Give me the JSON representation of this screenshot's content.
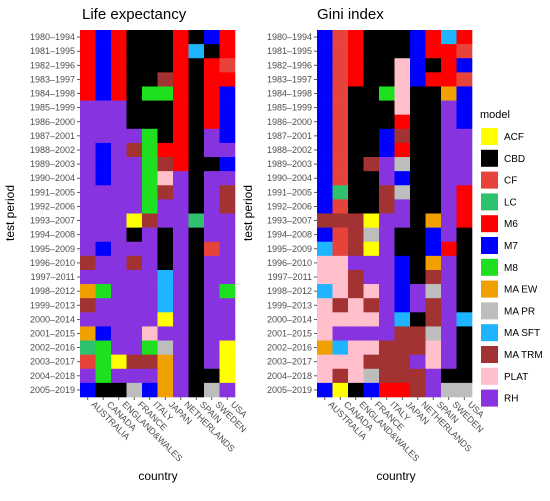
{
  "chart_data": {
    "type": "heatmap",
    "legend": {
      "title": "model",
      "position": "right",
      "items": [
        {
          "label": "ACF",
          "color": "#ffff00"
        },
        {
          "label": "CBD",
          "color": "#000000"
        },
        {
          "label": "CF",
          "color": "#e8433b"
        },
        {
          "label": "LC",
          "color": "#2ec26e"
        },
        {
          "label": "M6",
          "color": "#ff0000"
        },
        {
          "label": "M7",
          "color": "#0000ff"
        },
        {
          "label": "M8",
          "color": "#1ee01e"
        },
        {
          "label": "MA EW",
          "color": "#f0a000"
        },
        {
          "label": "MA PR",
          "color": "#bdbdbd"
        },
        {
          "label": "MA SFT",
          "color": "#1eb4ff"
        },
        {
          "label": "MA TRM",
          "color": "#a33232"
        },
        {
          "label": "PLAT",
          "color": "#ffc0cb"
        },
        {
          "label": "RH",
          "color": "#8833e0"
        }
      ]
    },
    "panels": [
      {
        "title": "Life expectancy",
        "xlabel": "country",
        "ylabel": "test period",
        "countries": [
          "AUSTRALIA",
          "CANADA",
          "ENGLAND&WALES",
          "FRANCE",
          "ITALY",
          "JAPAN",
          "NETHERLANDS",
          "SPAIN",
          "SWEDEN",
          "USA"
        ],
        "periods": [
          "1980–1994",
          "1981–1995",
          "1982–1996",
          "1983–1997",
          "1984–1998",
          "1985–1999",
          "1986–2000",
          "1987–2001",
          "1988–2002",
          "1989–2003",
          "1990–2004",
          "1991–2005",
          "1992–2006",
          "1993–2007",
          "1994–2008",
          "1995–2009",
          "1996–2010",
          "1997–2011",
          "1998–2012",
          "1999–2013",
          "2000–2014",
          "2001–2015",
          "2002–2016",
          "2003–2017",
          "2004–2018",
          "2005–2019"
        ],
        "cells": [
          [
            "M6",
            "M7",
            "M6",
            "CBD",
            "CBD",
            "CBD",
            "M6",
            "CBD",
            "M7",
            "M6"
          ],
          [
            "M6",
            "M7",
            "M6",
            "CBD",
            "CBD",
            "CBD",
            "M6",
            "MA SFT",
            "CBD",
            "M6"
          ],
          [
            "M6",
            "M7",
            "M6",
            "CBD",
            "CBD",
            "CBD",
            "M6",
            "CBD",
            "M6",
            "CF"
          ],
          [
            "M6",
            "M7",
            "M6",
            "CBD",
            "CBD",
            "MA TRM",
            "M6",
            "CBD",
            "M6",
            "M6"
          ],
          [
            "M6",
            "M7",
            "M6",
            "CBD",
            "M8",
            "M8",
            "M6",
            "CBD",
            "M6",
            "M7"
          ],
          [
            "RH",
            "RH",
            "RH",
            "CBD",
            "CBD",
            "CBD",
            "M6",
            "CBD",
            "M6",
            "M7"
          ],
          [
            "RH",
            "RH",
            "RH",
            "CBD",
            "CBD",
            "CBD",
            "M6",
            "CBD",
            "M6",
            "M7"
          ],
          [
            "RH",
            "RH",
            "RH",
            "RH",
            "M8",
            "CBD",
            "M6",
            "CBD",
            "RH",
            "M7"
          ],
          [
            "RH",
            "M7",
            "RH",
            "MA TRM",
            "M8",
            "M6",
            "M6",
            "CBD",
            "RH",
            "RH"
          ],
          [
            "RH",
            "M7",
            "RH",
            "RH",
            "M8",
            "MA TRM",
            "M6",
            "CBD",
            "CBD",
            "M7"
          ],
          [
            "RH",
            "M7",
            "RH",
            "RH",
            "M8",
            "PLAT",
            "RH",
            "CBD",
            "RH",
            "RH"
          ],
          [
            "RH",
            "RH",
            "RH",
            "RH",
            "M8",
            "MA TRM",
            "RH",
            "CBD",
            "RH",
            "MA TRM"
          ],
          [
            "RH",
            "RH",
            "RH",
            "RH",
            "M8",
            "RH",
            "RH",
            "CBD",
            "RH",
            "MA TRM"
          ],
          [
            "RH",
            "RH",
            "RH",
            "ACF",
            "MA TRM",
            "RH",
            "RH",
            "LC",
            "RH",
            "RH"
          ],
          [
            "RH",
            "RH",
            "RH",
            "CBD",
            "RH",
            "CBD",
            "RH",
            "CBD",
            "RH",
            "RH"
          ],
          [
            "RH",
            "M7",
            "RH",
            "RH",
            "RH",
            "CBD",
            "RH",
            "CBD",
            "CF",
            "RH"
          ],
          [
            "MA TRM",
            "RH",
            "RH",
            "MA TRM",
            "RH",
            "CBD",
            "RH",
            "CBD",
            "RH",
            "RH"
          ],
          [
            "RH",
            "RH",
            "RH",
            "RH",
            "RH",
            "MA SFT",
            "RH",
            "CBD",
            "RH",
            "RH"
          ],
          [
            "MA EW",
            "M8",
            "RH",
            "RH",
            "RH",
            "MA SFT",
            "RH",
            "CBD",
            "RH",
            "M8"
          ],
          [
            "MA TRM",
            "RH",
            "RH",
            "RH",
            "RH",
            "MA SFT",
            "RH",
            "CBD",
            "RH",
            "RH"
          ],
          [
            "RH",
            "RH",
            "RH",
            "RH",
            "RH",
            "ACF",
            "RH",
            "CBD",
            "RH",
            "RH"
          ],
          [
            "MA EW",
            "M7",
            "RH",
            "RH",
            "PLAT",
            "RH",
            "RH",
            "CBD",
            "RH",
            "RH"
          ],
          [
            "LC",
            "M8",
            "RH",
            "RH",
            "M8",
            "MA PR",
            "RH",
            "CBD",
            "RH",
            "ACF"
          ],
          [
            "CF",
            "M8",
            "ACF",
            "MA TRM",
            "MA TRM",
            "MA EW",
            "RH",
            "CBD",
            "RH",
            "ACF"
          ],
          [
            "RH",
            "M8",
            "RH",
            "RH",
            "RH",
            "MA EW",
            "RH",
            "CBD",
            "CBD",
            "ACF"
          ],
          [
            "M7",
            "CBD",
            "CBD",
            "MA PR",
            "M7",
            "MA EW",
            "RH",
            "CBD",
            "MA PR",
            "RH"
          ]
        ]
      },
      {
        "title": "Gini index",
        "xlabel": "country",
        "ylabel": "test period",
        "countries": [
          "AUSTRALIA",
          "CANADA",
          "ENGLAND&WALES",
          "FRANCE",
          "ITALY",
          "JAPAN",
          "NETHERLANDS",
          "SPAIN",
          "SWEDEN",
          "USA"
        ],
        "periods": [
          "1980–1994",
          "1981–1995",
          "1982–1996",
          "1983–1997",
          "1984–1998",
          "1985–1999",
          "1986–2000",
          "1987–2001",
          "1988–2002",
          "1989–2003",
          "1990–2004",
          "1991–2005",
          "1992–2006",
          "1993–2007",
          "1994–2008",
          "1995–2009",
          "1996–2010",
          "1997–2011",
          "1998–2012",
          "1999–2013",
          "2000–2014",
          "2001–2015",
          "2002–2016",
          "2003–2017",
          "2004–2018",
          "2005–2019"
        ],
        "cells": [
          [
            "M7",
            "CF",
            "M6",
            "CBD",
            "CBD",
            "CBD",
            "M7",
            "M6",
            "MA SFT",
            "M6"
          ],
          [
            "M7",
            "CF",
            "M6",
            "CBD",
            "CBD",
            "CBD",
            "M7",
            "M6",
            "M6",
            "CF"
          ],
          [
            "M7",
            "CF",
            "M6",
            "CBD",
            "CBD",
            "PLAT",
            "M7",
            "CBD",
            "M6",
            "M7"
          ],
          [
            "M7",
            "CF",
            "M6",
            "CBD",
            "CBD",
            "PLAT",
            "M7",
            "M6",
            "M6",
            "CF"
          ],
          [
            "M7",
            "CF",
            "CBD",
            "CBD",
            "M8",
            "PLAT",
            "CBD",
            "CBD",
            "MA EW",
            "M7"
          ],
          [
            "M7",
            "CF",
            "CBD",
            "CBD",
            "CBD",
            "PLAT",
            "CBD",
            "CBD",
            "RH",
            "M7"
          ],
          [
            "M7",
            "CF",
            "CBD",
            "CBD",
            "CBD",
            "M6",
            "CBD",
            "CBD",
            "RH",
            "M7"
          ],
          [
            "M7",
            "CF",
            "CBD",
            "CBD",
            "M7",
            "MA TRM",
            "CBD",
            "CBD",
            "RH",
            "RH"
          ],
          [
            "M7",
            "CF",
            "CBD",
            "CBD",
            "M7",
            "M6",
            "CBD",
            "CBD",
            "RH",
            "RH"
          ],
          [
            "M7",
            "CF",
            "CBD",
            "MA TRM",
            "RH",
            "MA PR",
            "CBD",
            "CBD",
            "RH",
            "RH"
          ],
          [
            "M7",
            "CF",
            "CBD",
            "CBD",
            "RH",
            "M7",
            "CBD",
            "CBD",
            "RH",
            "RH"
          ],
          [
            "M7",
            "LC",
            "CBD",
            "CBD",
            "MA TRM",
            "MA PR",
            "CBD",
            "CBD",
            "RH",
            "M6"
          ],
          [
            "M7",
            "CF",
            "CBD",
            "CBD",
            "MA TRM",
            "RH",
            "CBD",
            "CBD",
            "RH",
            "M6"
          ],
          [
            "MA TRM",
            "MA TRM",
            "MA TRM",
            "ACF",
            "RH",
            "RH",
            "CBD",
            "MA EW",
            "RH",
            "M6"
          ],
          [
            "M7",
            "CF",
            "MA TRM",
            "MA PR",
            "RH",
            "CBD",
            "CBD",
            "M7",
            "RH",
            "CBD"
          ],
          [
            "MA SFT",
            "CF",
            "MA TRM",
            "ACF",
            "RH",
            "CBD",
            "CBD",
            "M7",
            "M6",
            "CBD"
          ],
          [
            "PLAT",
            "PLAT",
            "RH",
            "RH",
            "RH",
            "M7",
            "CBD",
            "MA EW",
            "RH",
            "CBD"
          ],
          [
            "PLAT",
            "PLAT",
            "MA TRM",
            "RH",
            "RH",
            "M7",
            "CBD",
            "MA TRM",
            "RH",
            "CBD"
          ],
          [
            "MA SFT",
            "PLAT",
            "MA TRM",
            "PLAT",
            "RH",
            "M7",
            "RH",
            "MA PR",
            "RH",
            "CBD"
          ],
          [
            "PLAT",
            "MA TRM",
            "PLAT",
            "MA TRM",
            "RH",
            "M7",
            "RH",
            "MA TRM",
            "RH",
            "CBD"
          ],
          [
            "PLAT",
            "PLAT",
            "PLAT",
            "PLAT",
            "RH",
            "MA SFT",
            "CBD",
            "MA TRM",
            "RH",
            "MA SFT"
          ],
          [
            "PLAT",
            "RH",
            "RH",
            "RH",
            "RH",
            "MA TRM",
            "MA TRM",
            "MA PR",
            "RH",
            "CBD"
          ],
          [
            "MA EW",
            "MA SFT",
            "PLAT",
            "PLAT",
            "MA TRM",
            "MA TRM",
            "MA TRM",
            "PLAT",
            "RH",
            "CBD"
          ],
          [
            "PLAT",
            "PLAT",
            "PLAT",
            "MA TRM",
            "MA TRM",
            "MA TRM",
            "RH",
            "PLAT",
            "RH",
            "CBD"
          ],
          [
            "PLAT",
            "MA TRM",
            "PLAT",
            "MA PR",
            "MA TRM",
            "MA TRM",
            "MA TRM",
            "RH",
            "CBD",
            "CBD"
          ],
          [
            "M7",
            "ACF",
            "CBD",
            "M7",
            "M6",
            "M6",
            "MA TRM",
            "RH",
            "MA PR",
            "MA PR"
          ]
        ]
      }
    ]
  }
}
